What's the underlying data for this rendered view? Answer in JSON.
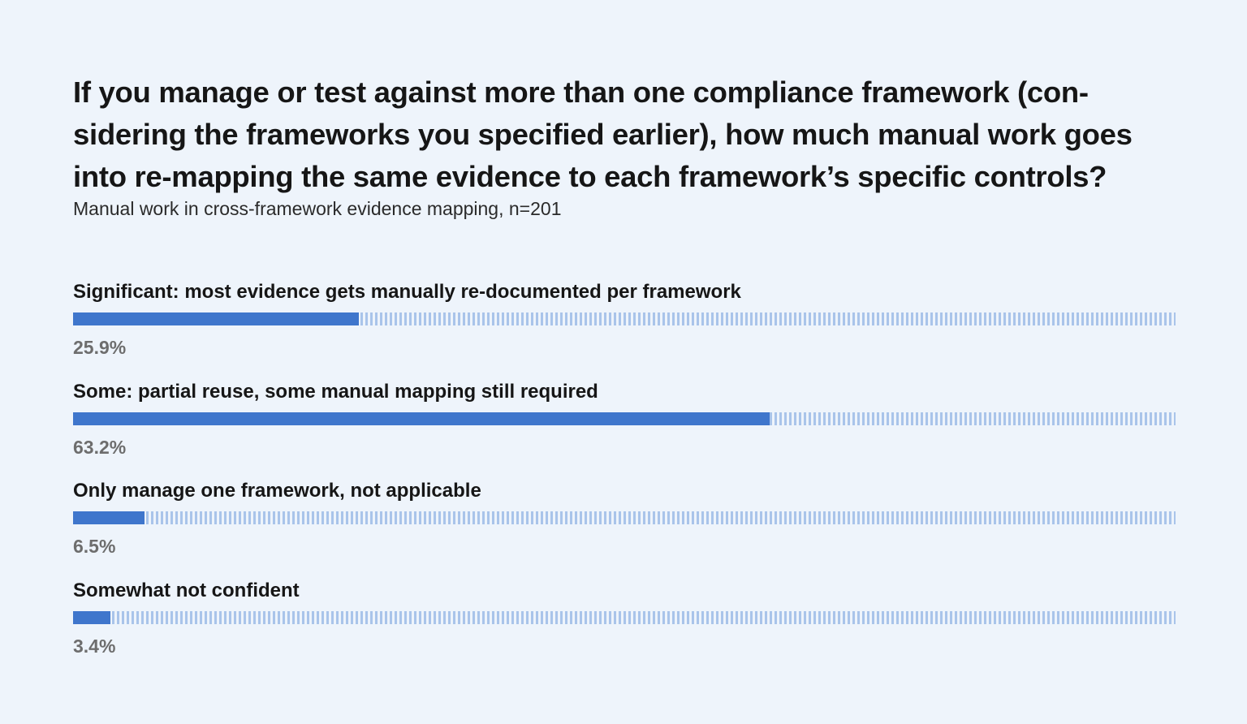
{
  "title_lines": [
    "If you manage or test against more than one compliance framework (con-",
    "sidering the frameworks you specified earlier), how much manual work goes",
    "into re-mapping the same evidence to each framework’s specific controls?"
  ],
  "subtitle": "Manual work in cross-framework evidence mapping, n=201",
  "colors": {
    "background": "#eef4fb",
    "bar_fill": "#3f76cc",
    "bar_track": "#a9c4ea",
    "value_text": "#6d6d6d"
  },
  "chart_data": {
    "type": "bar",
    "orientation": "horizontal",
    "title": "If you manage or test against more than one compliance framework (considering the frameworks you specified earlier), how much manual work goes into re-mapping the same evidence to each framework’s specific controls?",
    "subtitle": "Manual work in cross-framework evidence mapping, n=201",
    "categories": [
      "Significant: most evidence gets manually re-documented per framework",
      "Some: partial reuse, some manual mapping still required",
      "Only manage one framework, not applicable",
      "Somewhat not confident"
    ],
    "values": [
      25.9,
      63.2,
      6.5,
      3.4
    ],
    "value_labels": [
      "25.9%",
      "63.2%",
      "6.5%",
      "3.4%"
    ],
    "unit": "%",
    "xlim": [
      0,
      100
    ],
    "grid": false,
    "legend": "none"
  }
}
